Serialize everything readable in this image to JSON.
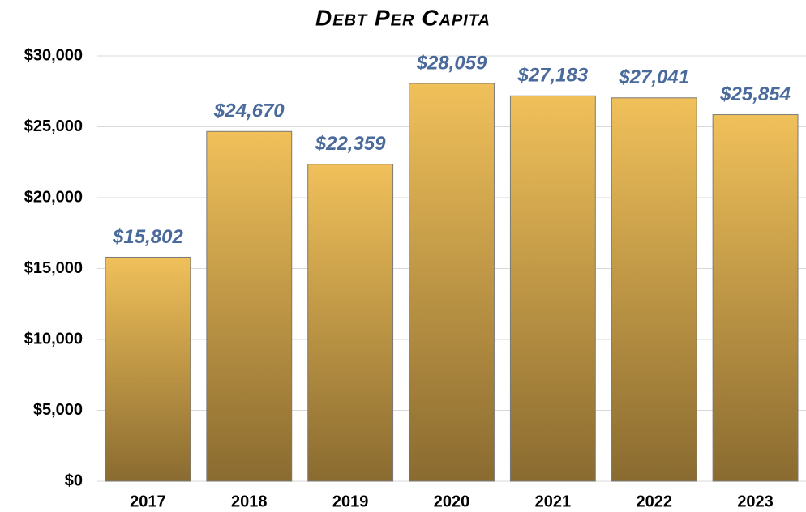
{
  "chart_data": {
    "type": "bar",
    "title": "Debt Per Capita",
    "categories": [
      "2017",
      "2018",
      "2019",
      "2020",
      "2021",
      "2022",
      "2023"
    ],
    "values": [
      15802,
      24670,
      22359,
      28059,
      27183,
      27041,
      25854
    ],
    "value_labels": [
      "$15,802",
      "$24,670",
      "$22,359",
      "$28,059",
      "$27,183",
      "$27,041",
      "$25,854"
    ],
    "color": "#f0c05a",
    "ylim": [
      0,
      30000
    ],
    "yticks": [
      {
        "value": 0,
        "label": "$0"
      },
      {
        "value": 5000,
        "label": "$5,000"
      },
      {
        "value": 10000,
        "label": "$10,000"
      },
      {
        "value": 15000,
        "label": "$15,000"
      },
      {
        "value": 20000,
        "label": "$20,000"
      },
      {
        "value": 25000,
        "label": "$25,000"
      },
      {
        "value": 30000,
        "label": "$30,000"
      }
    ],
    "grid": true
  }
}
